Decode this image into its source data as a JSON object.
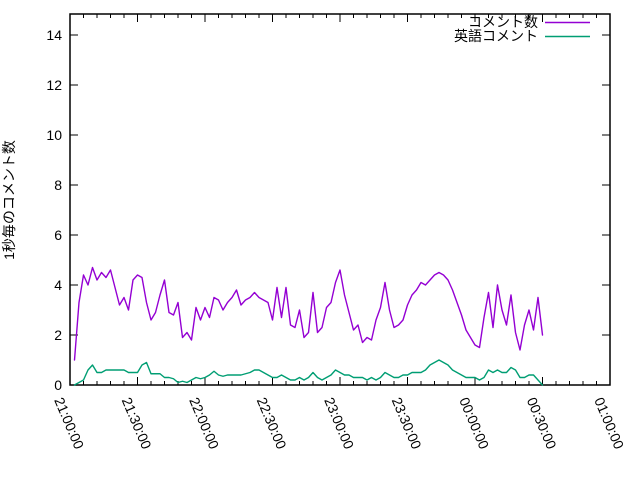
{
  "figure": {
    "background": "#ffffff",
    "axis_color": "#000000",
    "text_color": "#000000"
  },
  "chart_data": {
    "type": "line",
    "title": "",
    "xlabel": "",
    "ylabel": "1秒毎のコメント数",
    "grid": false,
    "legend_position": "top-right-inside",
    "ylim": [
      0,
      14.84
    ],
    "y_tick_values": [
      0,
      2,
      4,
      6,
      8,
      10,
      12,
      14
    ],
    "x_minutes_range": [
      0,
      240
    ],
    "x_major_interval_min": 30,
    "x_minor_interval_min": 6,
    "x_tick_minutes": [
      0,
      30,
      60,
      90,
      120,
      150,
      180,
      210,
      240
    ],
    "x_tick_labels": [
      "21:00:00",
      "21:30:00",
      "22:00:00",
      "22:30:00",
      "23:00:00",
      "23:30:00",
      "00:00:00",
      "00:30:00",
      "01:00:00"
    ],
    "x_minutes": [
      2,
      4,
      6,
      8,
      10,
      12,
      14,
      16,
      18,
      20,
      22,
      24,
      26,
      28,
      30,
      32,
      34,
      36,
      38,
      40,
      42,
      44,
      46,
      48,
      50,
      52,
      54,
      56,
      58,
      60,
      62,
      64,
      66,
      68,
      70,
      72,
      74,
      76,
      78,
      80,
      82,
      84,
      86,
      88,
      90,
      92,
      94,
      96,
      98,
      100,
      102,
      104,
      106,
      108,
      110,
      112,
      114,
      116,
      118,
      120,
      122,
      124,
      126,
      128,
      130,
      132,
      134,
      136,
      138,
      140,
      142,
      144,
      146,
      148,
      150,
      152,
      154,
      156,
      158,
      160,
      162,
      164,
      166,
      168,
      170,
      172,
      174,
      176,
      178,
      180,
      182,
      184,
      186,
      188,
      190,
      192,
      194,
      196,
      198,
      200,
      202,
      204,
      206,
      208,
      210
    ],
    "series": [
      {
        "name": "コメント数",
        "color": "#9400d3",
        "values": [
          1.0,
          3.3,
          4.4,
          4.0,
          4.7,
          4.2,
          4.5,
          4.3,
          4.6,
          3.9,
          3.2,
          3.5,
          3.0,
          4.2,
          4.4,
          4.3,
          3.3,
          2.6,
          2.9,
          3.6,
          4.2,
          2.9,
          2.8,
          3.3,
          1.9,
          2.1,
          1.8,
          3.1,
          2.6,
          3.1,
          2.7,
          3.5,
          3.4,
          3.0,
          3.3,
          3.5,
          3.8,
          3.2,
          3.4,
          3.5,
          3.7,
          3.5,
          3.4,
          3.3,
          2.6,
          3.9,
          2.7,
          3.9,
          2.4,
          2.3,
          3.0,
          1.9,
          2.1,
          3.7,
          2.1,
          2.3,
          3.1,
          3.3,
          4.1,
          4.6,
          3.6,
          2.9,
          2.2,
          2.4,
          1.7,
          1.9,
          1.8,
          2.6,
          3.1,
          4.1,
          3.0,
          2.3,
          2.4,
          2.6,
          3.2,
          3.6,
          3.8,
          4.1,
          4.0,
          4.2,
          4.4,
          4.5,
          4.4,
          4.2,
          3.8,
          3.3,
          2.8,
          2.2,
          1.9,
          1.6,
          1.5,
          2.7,
          3.7,
          2.3,
          4.0,
          3.0,
          2.4,
          3.6,
          2.1,
          1.4,
          2.4,
          3.0,
          2.2,
          3.5,
          2.0
        ]
      },
      {
        "name": "英語コメント",
        "color": "#009e73",
        "values": [
          0.0,
          0.1,
          0.2,
          0.6,
          0.8,
          0.5,
          0.5,
          0.6,
          0.6,
          0.6,
          0.6,
          0.6,
          0.5,
          0.5,
          0.5,
          0.8,
          0.9,
          0.45,
          0.45,
          0.45,
          0.3,
          0.3,
          0.25,
          0.1,
          0.15,
          0.1,
          0.2,
          0.3,
          0.25,
          0.3,
          0.4,
          0.55,
          0.4,
          0.35,
          0.4,
          0.4,
          0.4,
          0.4,
          0.45,
          0.5,
          0.6,
          0.6,
          0.5,
          0.4,
          0.3,
          0.3,
          0.4,
          0.3,
          0.2,
          0.2,
          0.3,
          0.2,
          0.3,
          0.5,
          0.3,
          0.2,
          0.3,
          0.4,
          0.6,
          0.5,
          0.4,
          0.4,
          0.3,
          0.3,
          0.3,
          0.2,
          0.3,
          0.2,
          0.3,
          0.5,
          0.4,
          0.3,
          0.3,
          0.4,
          0.4,
          0.5,
          0.5,
          0.5,
          0.6,
          0.8,
          0.9,
          1.0,
          0.9,
          0.8,
          0.6,
          0.5,
          0.4,
          0.3,
          0.3,
          0.3,
          0.2,
          0.3,
          0.6,
          0.5,
          0.6,
          0.5,
          0.5,
          0.7,
          0.6,
          0.3,
          0.3,
          0.4,
          0.4,
          0.2,
          0.0
        ]
      }
    ]
  }
}
